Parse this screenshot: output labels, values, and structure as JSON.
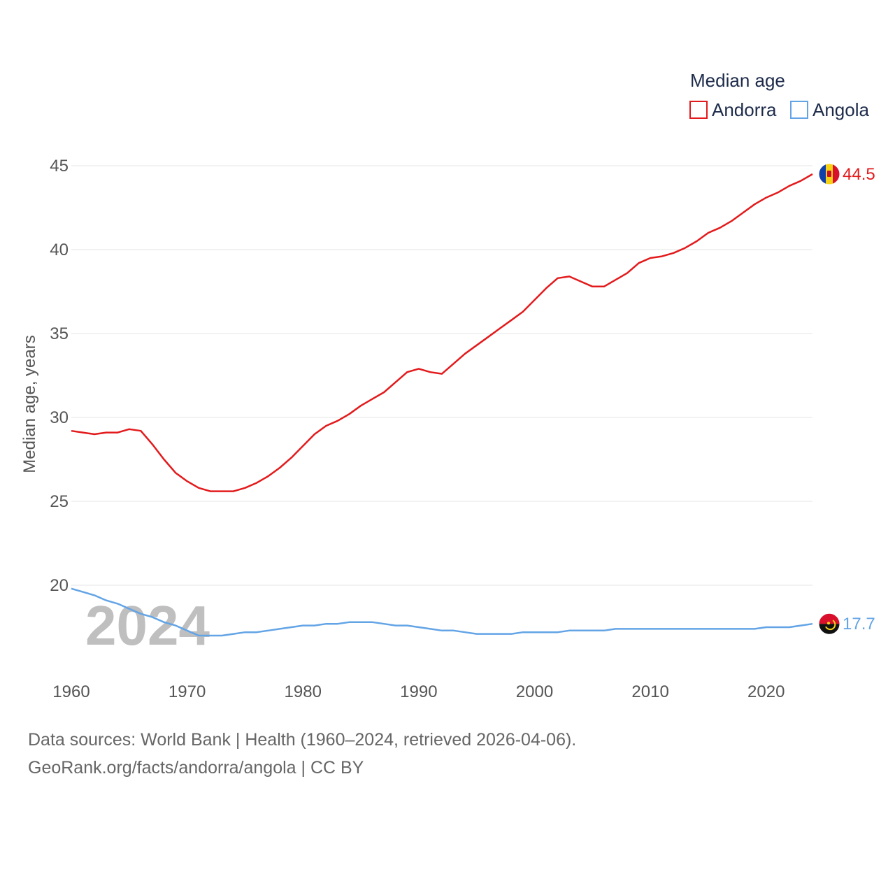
{
  "chart_data": {
    "type": "line",
    "legend_title": "Median age",
    "ylabel": "Median age, years",
    "xlabel": "",
    "xlim": [
      1960,
      2024
    ],
    "ylim": [
      15,
      47
    ],
    "y_ticks": [
      20,
      25,
      30,
      35,
      40,
      45
    ],
    "x_ticks": [
      1960,
      1970,
      1980,
      1990,
      2000,
      2010,
      2020
    ],
    "grid": true,
    "legend_position": "top-right",
    "watermark_year": "2024",
    "series": [
      {
        "name": "Andorra",
        "color": "#e31a1c",
        "end_label": "44.5",
        "flag_icon": "andorra-flag-icon",
        "x": [
          1960,
          1961,
          1962,
          1963,
          1964,
          1965,
          1966,
          1967,
          1968,
          1969,
          1970,
          1971,
          1972,
          1973,
          1974,
          1975,
          1976,
          1977,
          1978,
          1979,
          1980,
          1981,
          1982,
          1983,
          1984,
          1985,
          1986,
          1987,
          1988,
          1989,
          1990,
          1991,
          1992,
          1993,
          1994,
          1995,
          1996,
          1997,
          1998,
          1999,
          2000,
          2001,
          2002,
          2003,
          2004,
          2005,
          2006,
          2007,
          2008,
          2009,
          2010,
          2011,
          2012,
          2013,
          2014,
          2015,
          2016,
          2017,
          2018,
          2019,
          2020,
          2021,
          2022,
          2023,
          2024
        ],
        "values": [
          29.2,
          29.1,
          29.0,
          29.1,
          29.1,
          29.3,
          29.2,
          28.4,
          27.5,
          26.7,
          26.2,
          25.8,
          25.6,
          25.6,
          25.6,
          25.8,
          26.1,
          26.5,
          27.0,
          27.6,
          28.3,
          29.0,
          29.5,
          29.8,
          30.2,
          30.7,
          31.1,
          31.5,
          32.1,
          32.7,
          32.9,
          32.7,
          32.6,
          33.2,
          33.8,
          34.3,
          34.8,
          35.3,
          35.8,
          36.3,
          37.0,
          37.7,
          38.3,
          38.4,
          38.1,
          37.8,
          37.8,
          38.2,
          38.6,
          39.2,
          39.5,
          39.6,
          39.8,
          40.1,
          40.5,
          41.0,
          41.3,
          41.7,
          42.2,
          42.7,
          43.1,
          43.4,
          43.8,
          44.1,
          44.5
        ]
      },
      {
        "name": "Angola",
        "color": "#63a4e6",
        "end_label": "17.7",
        "flag_icon": "angola-flag-icon",
        "x": [
          1960,
          1961,
          1962,
          1963,
          1964,
          1965,
          1966,
          1967,
          1968,
          1969,
          1970,
          1971,
          1972,
          1973,
          1974,
          1975,
          1976,
          1977,
          1978,
          1979,
          1980,
          1981,
          1982,
          1983,
          1984,
          1985,
          1986,
          1987,
          1988,
          1989,
          1990,
          1991,
          1992,
          1993,
          1994,
          1995,
          1996,
          1997,
          1998,
          1999,
          2000,
          2001,
          2002,
          2003,
          2004,
          2005,
          2006,
          2007,
          2008,
          2009,
          2010,
          2011,
          2012,
          2013,
          2014,
          2015,
          2016,
          2017,
          2018,
          2019,
          2020,
          2021,
          2022,
          2023,
          2024
        ],
        "values": [
          19.8,
          19.6,
          19.4,
          19.1,
          18.9,
          18.6,
          18.3,
          18.1,
          17.8,
          17.6,
          17.3,
          17.0,
          17.0,
          17.0,
          17.1,
          17.2,
          17.2,
          17.3,
          17.4,
          17.5,
          17.6,
          17.6,
          17.7,
          17.7,
          17.8,
          17.8,
          17.8,
          17.7,
          17.6,
          17.6,
          17.5,
          17.4,
          17.3,
          17.3,
          17.2,
          17.1,
          17.1,
          17.1,
          17.1,
          17.2,
          17.2,
          17.2,
          17.2,
          17.3,
          17.3,
          17.3,
          17.3,
          17.4,
          17.4,
          17.4,
          17.4,
          17.4,
          17.4,
          17.4,
          17.4,
          17.4,
          17.4,
          17.4,
          17.4,
          17.4,
          17.5,
          17.5,
          17.5,
          17.6,
          17.7
        ]
      }
    ]
  },
  "footer": {
    "line1": "Data sources: World Bank | Health (1960–2024, retrieved 2026-04-06).",
    "line2": "GeoRank.org/facts/andorra/angola | CC BY"
  }
}
